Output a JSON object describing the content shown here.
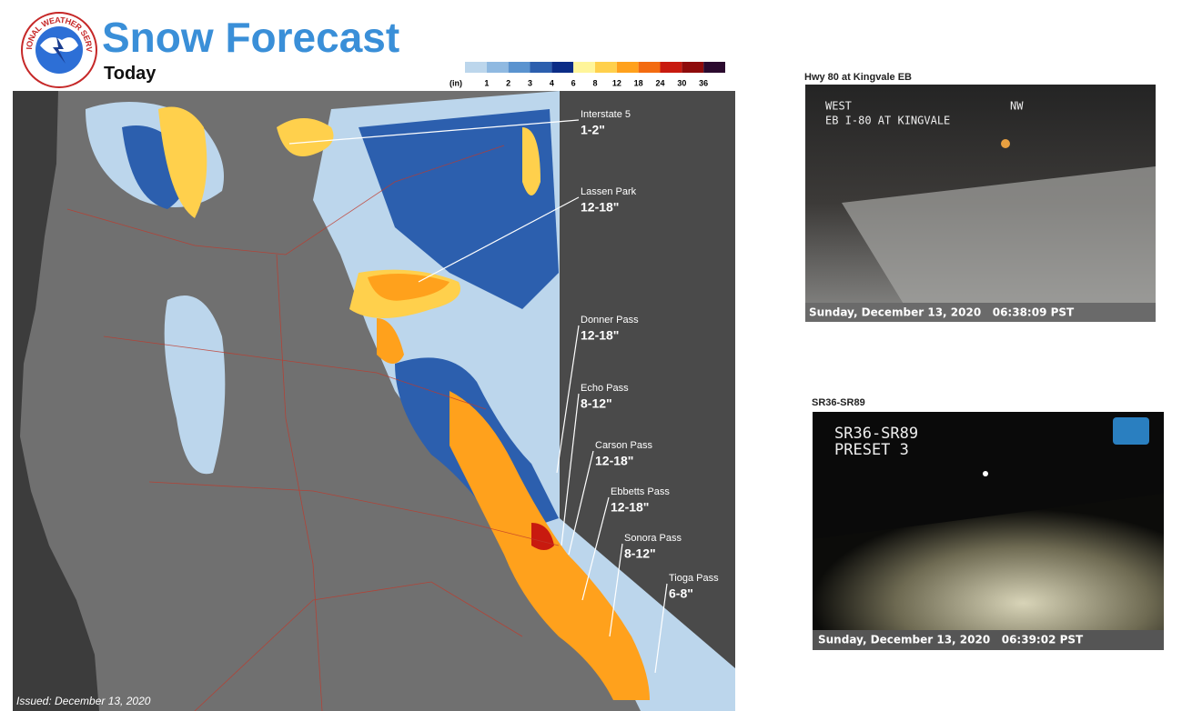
{
  "header": {
    "logo_text": "NATIONAL WEATHER SERVICE",
    "title": "Snow Forecast",
    "subtitle": "Today"
  },
  "legend": {
    "unit": "(in)",
    "colors": [
      "#bcd6ec",
      "#8fb9e1",
      "#5a93cf",
      "#2c5fae",
      "#0b2c86",
      "#fff59a",
      "#ffd04c",
      "#ffa11c",
      "#f36b10",
      "#c81a0f",
      "#8e0b0b",
      "#2b0a2e"
    ],
    "labels": [
      1,
      2,
      3,
      4,
      6,
      8,
      12,
      18,
      24,
      30,
      36
    ]
  },
  "map": {
    "locations": [
      {
        "name": "Interstate 5",
        "amount": "1-2\""
      },
      {
        "name": "Lassen Park",
        "amount": "12-18\""
      },
      {
        "name": "Donner Pass",
        "amount": "12-18\""
      },
      {
        "name": "Echo Pass",
        "amount": "8-12\""
      },
      {
        "name": "Carson Pass",
        "amount": "12-18\""
      },
      {
        "name": "Ebbetts Pass",
        "amount": "12-18\""
      },
      {
        "name": "Sonora Pass",
        "amount": "8-12\""
      },
      {
        "name": "Tioga Pass",
        "amount": "6-8\""
      }
    ],
    "issued": "Issued: December 13, 2020"
  },
  "cameras": [
    {
      "title": "Hwy 80 at Kingvale EB",
      "overlay": [
        "WEST",
        "NW",
        "EB I-80 AT KINGVALE"
      ],
      "timestamp": "Sunday, December 13, 2020   06:38:09 PST"
    },
    {
      "title": "SR36-SR89",
      "overlay": [
        "SR36-SR89",
        "PRESET 3"
      ],
      "timestamp": "Sunday, December 13, 2020   06:39:02 PST"
    }
  ]
}
